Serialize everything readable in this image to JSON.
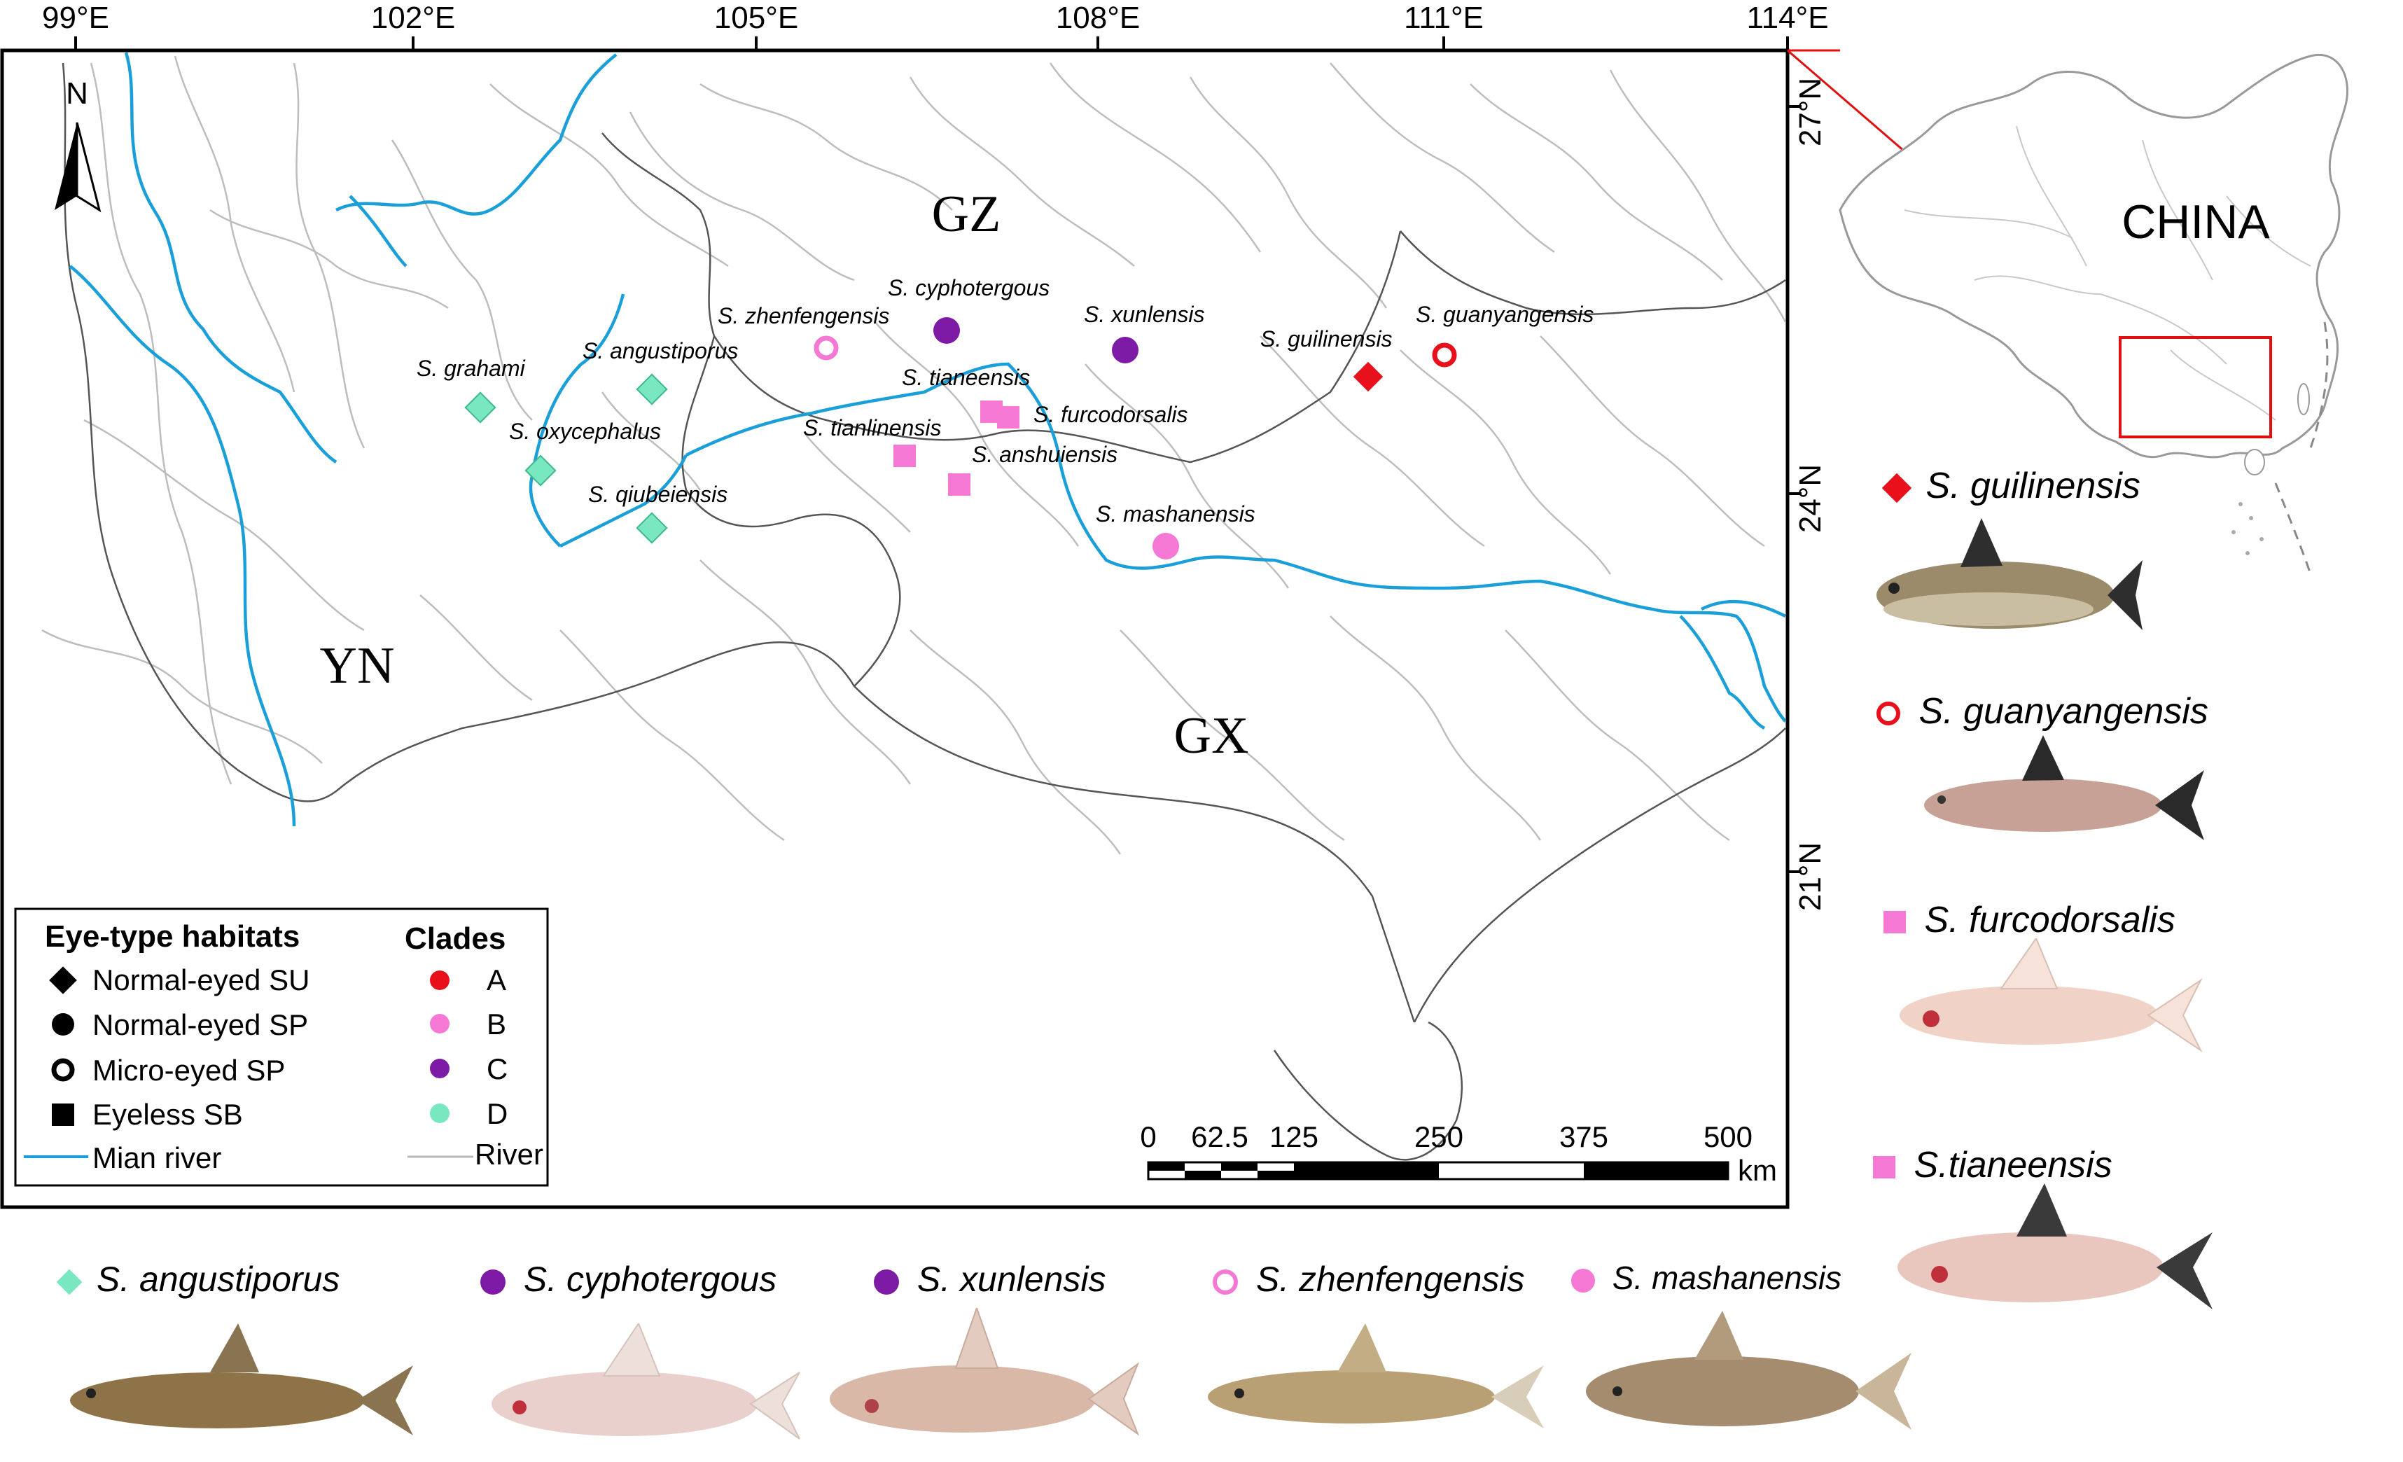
{
  "map": {
    "longitude_ticks": [
      "99°E",
      "102°E",
      "105°E",
      "108°E",
      "111°E",
      "114°E"
    ],
    "latitude_ticks": [
      "27°N",
      "24°N",
      "21°N"
    ],
    "north_label": "N",
    "provinces": {
      "gz": "GZ",
      "yn": "YN",
      "gx": "GX"
    },
    "inset_label": "CHINA",
    "scale_bar": {
      "ticks": [
        "0",
        "62.5",
        "125",
        "250",
        "375",
        "500"
      ],
      "unit": "km"
    },
    "sites": [
      {
        "name": "S. grahami",
        "clade": "D",
        "habitat": "Normal-eyed SU"
      },
      {
        "name": "S. angustiporus",
        "clade": "D",
        "habitat": "Normal-eyed SU"
      },
      {
        "name": "S. oxycephalus",
        "clade": "D",
        "habitat": "Normal-eyed SU"
      },
      {
        "name": "S. qiubeiensis",
        "clade": "D",
        "habitat": "Normal-eyed SU"
      },
      {
        "name": "S. zhenfengensis",
        "clade": "B",
        "habitat": "Micro-eyed SP"
      },
      {
        "name": "S. cyphotergous",
        "clade": "C",
        "habitat": "Normal-eyed SP"
      },
      {
        "name": "S. xunlensis",
        "clade": "C",
        "habitat": "Normal-eyed SP"
      },
      {
        "name": "S. tianeensis",
        "clade": "B",
        "habitat": "Eyeless SB"
      },
      {
        "name": "S. furcodorsalis",
        "clade": "B",
        "habitat": "Eyeless SB"
      },
      {
        "name": "S. tianlinensis",
        "clade": "B",
        "habitat": "Eyeless SB"
      },
      {
        "name": "S. anshuiensis",
        "clade": "B",
        "habitat": "Eyeless SB"
      },
      {
        "name": "S. mashanensis",
        "clade": "B",
        "habitat": "Normal-eyed SP"
      },
      {
        "name": "S. guilinensis",
        "clade": "A",
        "habitat": "Normal-eyed SU"
      },
      {
        "name": "S. guanyangensis",
        "clade": "A",
        "habitat": "Micro-eyed SP"
      }
    ]
  },
  "legend": {
    "habitat_title": "Eye-type habitats",
    "habitat_items": [
      "Normal-eyed SU",
      "Normal-eyed SP",
      "Micro-eyed SP",
      "Eyeless SB"
    ],
    "main_river": "Mian river",
    "river": "River",
    "clades_title": "Clades",
    "clades": [
      {
        "label": "A",
        "color": "#e8101a"
      },
      {
        "label": "B",
        "color": "#f578d4"
      },
      {
        "label": "C",
        "color": "#7d1aa6"
      },
      {
        "label": "D",
        "color": "#79e8c0"
      }
    ]
  },
  "fish_panels": {
    "side": [
      "S. guilinensis",
      "S. guanyangensis",
      "S. furcodorsalis",
      "S.tianeensis"
    ],
    "bottom": [
      "S. angustiporus",
      "S. cyphotergous",
      "S. xunlensis",
      "S. zhenfengensis",
      "S. mashanensis"
    ]
  },
  "colors": {
    "main_river": "#1a9fd8",
    "river": "#b8b8b8",
    "inset_box": "#e01010"
  }
}
